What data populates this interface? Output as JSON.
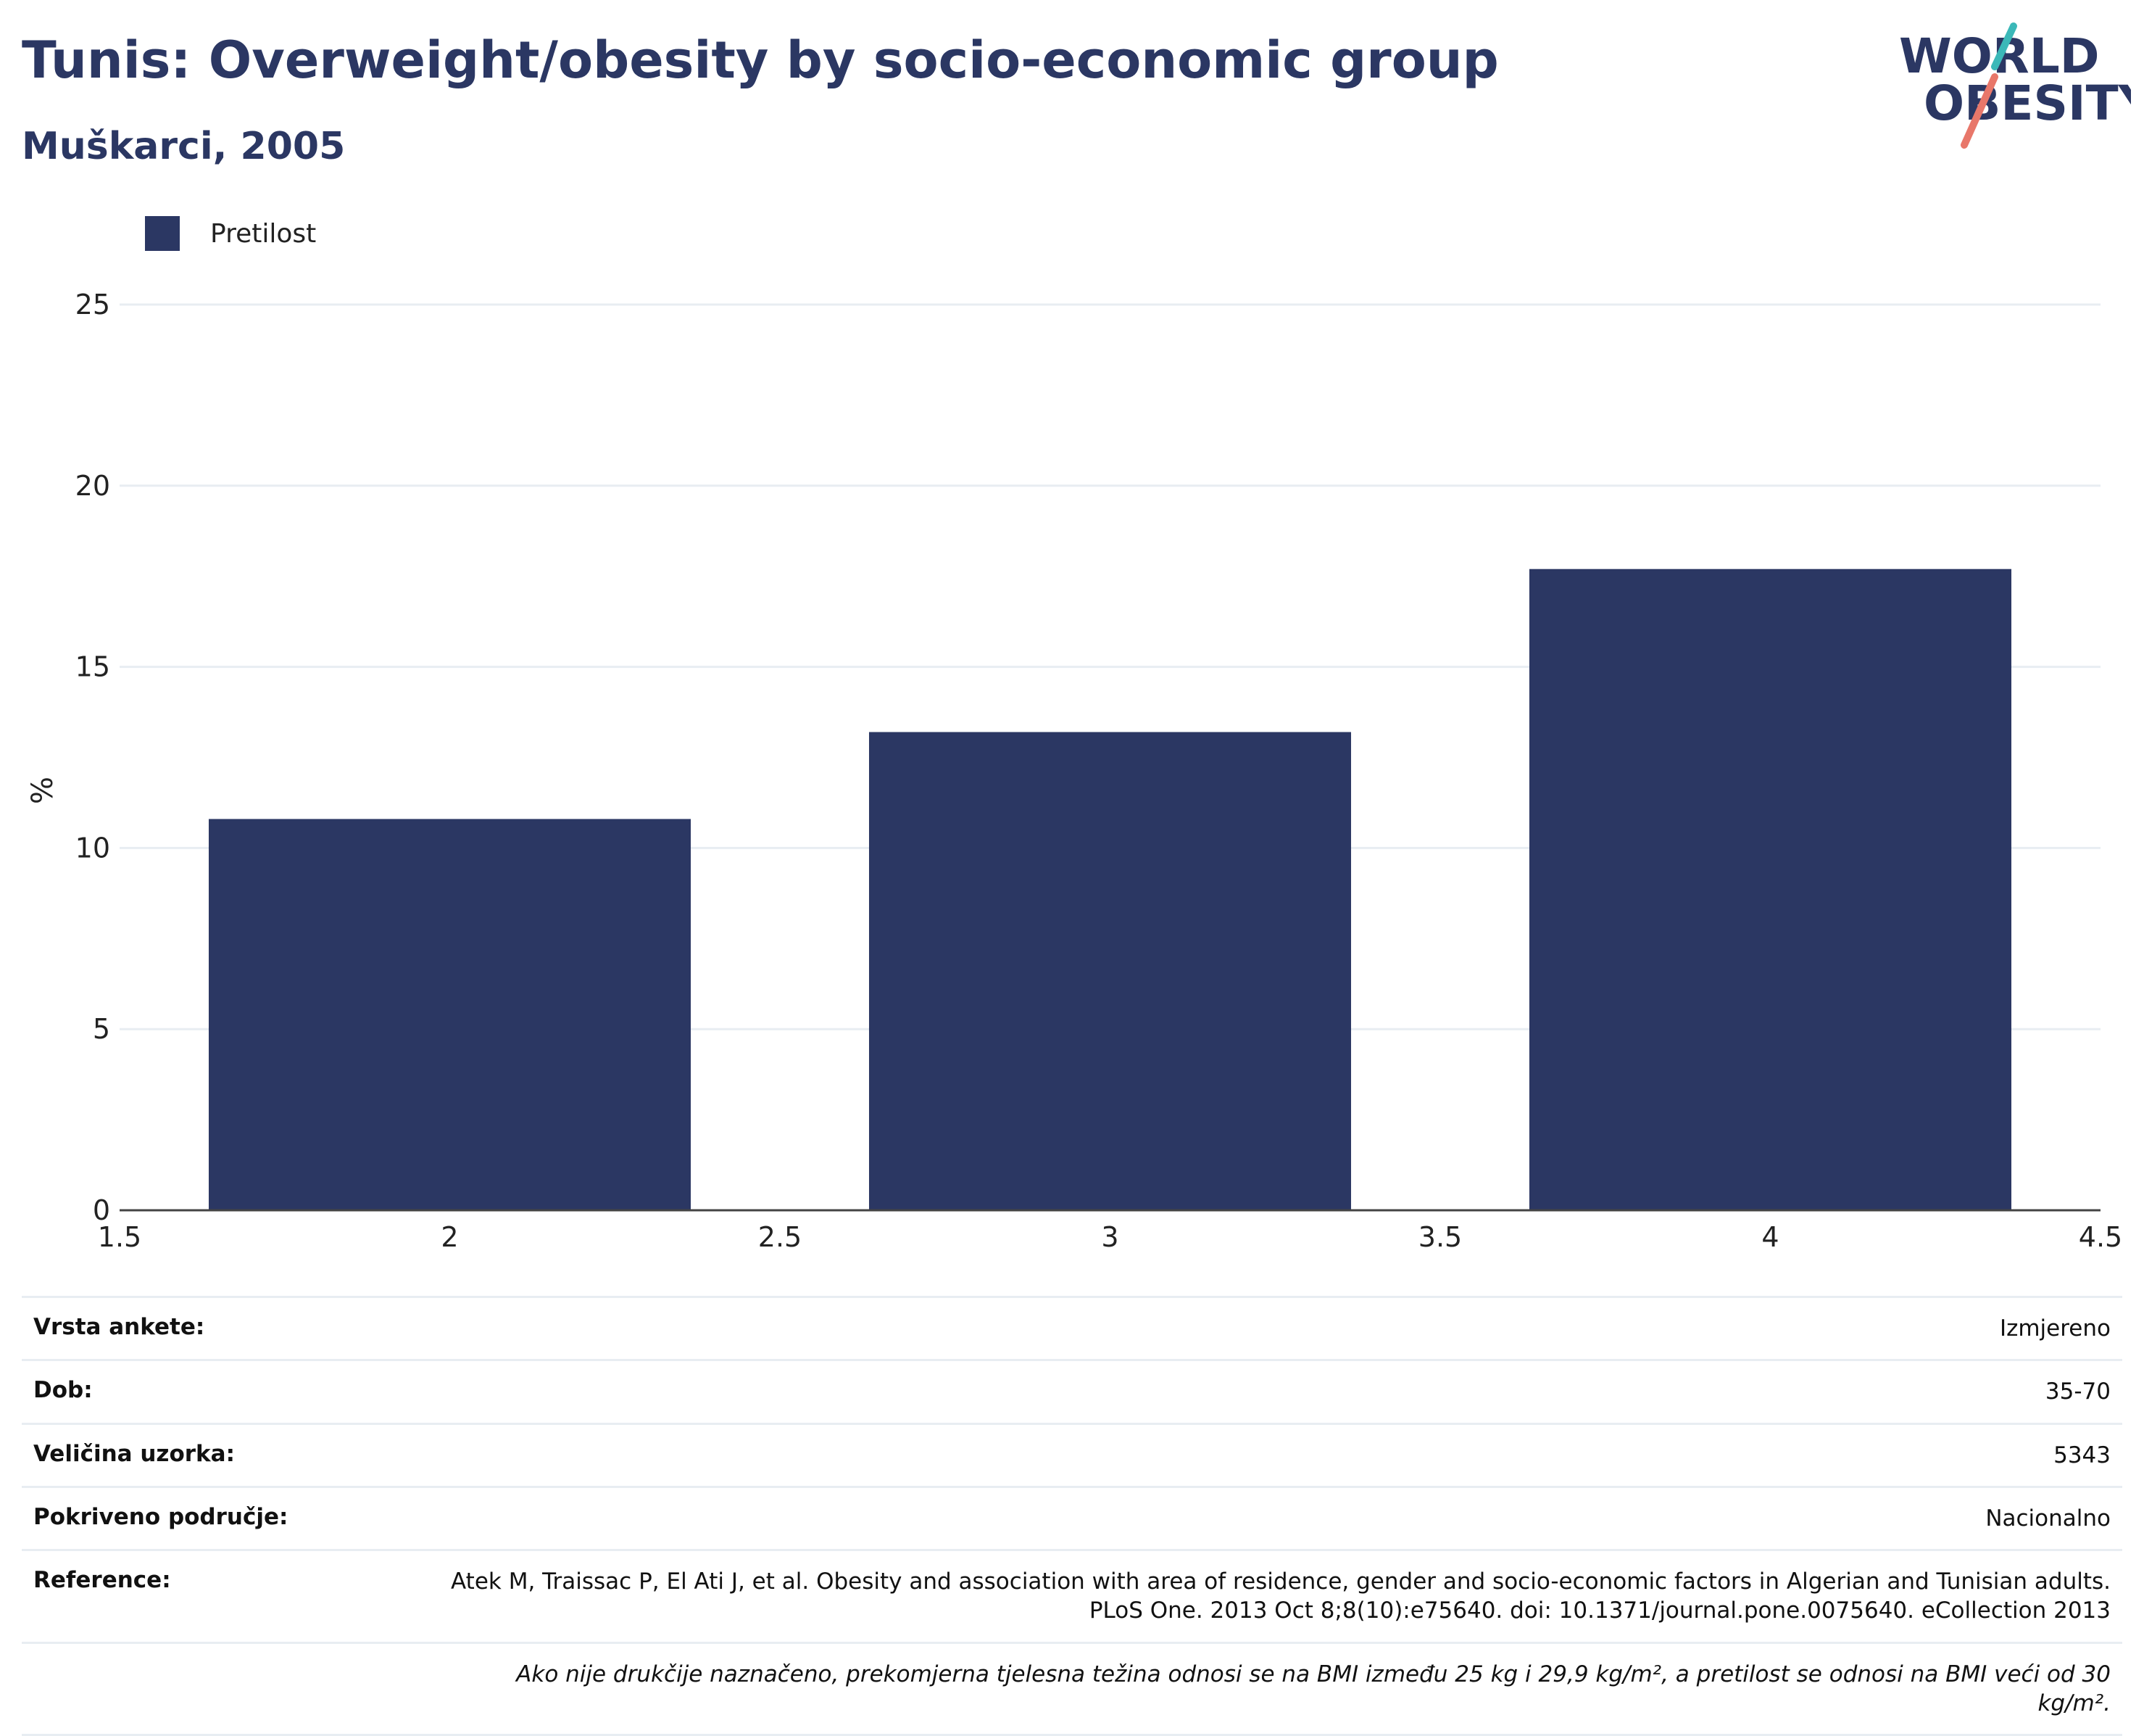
{
  "header": {
    "title": "Tunis: Overweight/obesity by socio-economic group",
    "subtitle": "Muškarci, 2005"
  },
  "logo": {
    "line1": "WORLD",
    "line2": "OBESITY"
  },
  "colors": {
    "bar": "#2b3763",
    "text": "#2b3763",
    "grid": "#e8edf2",
    "logo_teal": "#3bb8b8",
    "logo_coral": "#e8776a"
  },
  "chart_data": {
    "type": "bar",
    "legend": [
      "Pretilost"
    ],
    "legend_position": "top-left",
    "grid": true,
    "ylabel": "%",
    "xlabel": "",
    "xlim": [
      1.5,
      4.5
    ],
    "ylim": [
      0,
      25
    ],
    "xticks": [
      1.5,
      2,
      2.5,
      3,
      3.5,
      4,
      4.5
    ],
    "yticks": [
      0,
      5,
      10,
      15,
      20,
      25
    ],
    "bar_width": 0.73,
    "series": [
      {
        "name": "Pretilost",
        "x": [
          2,
          3,
          4
        ],
        "values": [
          10.8,
          13.2,
          17.7
        ]
      }
    ]
  },
  "info": {
    "rows": [
      {
        "key": "Vrsta ankete:",
        "value": "Izmjereno"
      },
      {
        "key": "Dob:",
        "value": "35-70"
      },
      {
        "key": "Veličina uzorka:",
        "value": "5343"
      },
      {
        "key": "Pokriveno područje:",
        "value": "Nacionalno"
      },
      {
        "key": "Reference:",
        "value": "Atek M, Traissac P, El Ati J, et al. Obesity and association with area of residence, gender and socio-economic factors in Algerian and Tunisian adults. PLoS One. 2013 Oct 8;8(10):e75640. doi: 10.1371/journal.pone.0075640. eCollection 2013"
      }
    ],
    "note": "Ako nije drukčije naznačeno, prekomjerna tjelesna težina odnosi se na BMI između 25 kg i 29,9 kg/m², a pretilost se odnosi na BMI veći od 30 kg/m²."
  }
}
